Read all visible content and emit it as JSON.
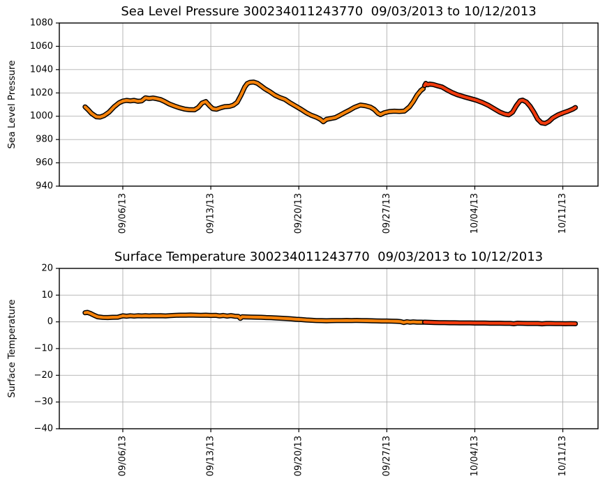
{
  "page": {
    "background": "#ffffff"
  },
  "colors": {
    "early_series": "#F5820A",
    "late_series": "#F23B0D",
    "marker_edge": "#000000",
    "grid": "#b0b0b0",
    "axis": "#000000",
    "text": "#000000"
  },
  "chart_data": [
    {
      "type": "line",
      "title": "Sea Level Pressure 300234011243770  09/03/2013 to 10/12/2013",
      "ylabel": "Sea Level Pressure",
      "xlabel": "",
      "ylim": [
        940,
        1080
      ],
      "ytick_values": [
        1080,
        1060,
        1040,
        1020,
        1000,
        980,
        960,
        940
      ],
      "ytick_labels": [
        "1080",
        "1060",
        "1040",
        "1020",
        "1000",
        "980",
        "960",
        "940"
      ],
      "grid": true,
      "x_axis": {
        "start_label": "09/03/2013",
        "end_label": "10/12/2013",
        "xlim_days": [
          -2.05,
          40.8
        ],
        "ticks": [
          {
            "day": 3,
            "label": "09/06/13"
          },
          {
            "day": 10,
            "label": "09/13/13"
          },
          {
            "day": 17,
            "label": "09/20/13"
          },
          {
            "day": 24,
            "label": "09/27/13"
          },
          {
            "day": 31,
            "label": "10/04/13"
          },
          {
            "day": 38,
            "label": "10/11/13"
          }
        ]
      },
      "series": [
        {
          "name": "pressure-early-deployment",
          "color": "#F5820A",
          "edge_color": "#000000",
          "points": [
            [
              0,
              1008
            ],
            [
              0.25,
              1005.5
            ],
            [
              0.5,
              1002.5
            ],
            [
              0.9,
              999.5
            ],
            [
              1.2,
              999.3
            ],
            [
              1.5,
              1000.5
            ],
            [
              1.9,
              1003.5
            ],
            [
              2.3,
              1008
            ],
            [
              2.7,
              1011.5
            ],
            [
              3.0,
              1013
            ],
            [
              3.3,
              1013.6
            ],
            [
              3.6,
              1013.2
            ],
            [
              3.9,
              1013.6
            ],
            [
              4.2,
              1012.8
            ],
            [
              4.5,
              1013.2
            ],
            [
              4.8,
              1015.8
            ],
            [
              5.1,
              1015.2
            ],
            [
              5.4,
              1015.6
            ],
            [
              5.7,
              1015.0
            ],
            [
              6.0,
              1014.3
            ],
            [
              6.3,
              1012.8
            ],
            [
              6.7,
              1010.5
            ],
            [
              7.1,
              1008.8
            ],
            [
              7.5,
              1007.3
            ],
            [
              7.9,
              1006.2
            ],
            [
              8.3,
              1005.6
            ],
            [
              8.7,
              1005.5
            ],
            [
              9.0,
              1007.5
            ],
            [
              9.3,
              1011.3
            ],
            [
              9.6,
              1012.6
            ],
            [
              9.9,
              1009
            ],
            [
              10.15,
              1006.5
            ],
            [
              10.45,
              1006
            ],
            [
              10.8,
              1007.3
            ],
            [
              11.1,
              1008.2
            ],
            [
              11.5,
              1008.5
            ],
            [
              11.8,
              1009.5
            ],
            [
              12.1,
              1012
            ],
            [
              12.4,
              1018
            ],
            [
              12.7,
              1025
            ],
            [
              12.9,
              1028
            ],
            [
              13.1,
              1029
            ],
            [
              13.4,
              1029.3
            ],
            [
              13.7,
              1028.3
            ],
            [
              14.0,
              1026
            ],
            [
              14.3,
              1023.5
            ],
            [
              14.7,
              1021
            ],
            [
              15.1,
              1018
            ],
            [
              15.5,
              1016
            ],
            [
              15.9,
              1014.4
            ],
            [
              16.3,
              1011.5
            ],
            [
              16.8,
              1008.4
            ],
            [
              17.2,
              1005.8
            ],
            [
              17.6,
              1003
            ],
            [
              18.0,
              1000.8
            ],
            [
              18.4,
              999.2
            ],
            [
              18.7,
              997.5
            ],
            [
              18.95,
              995.3
            ],
            [
              19.2,
              997.3
            ],
            [
              19.5,
              998
            ],
            [
              19.9,
              998.8
            ],
            [
              20.2,
              1000.5
            ],
            [
              20.6,
              1002.8
            ],
            [
              21.0,
              1005
            ],
            [
              21.4,
              1007.5
            ],
            [
              21.9,
              1009.6
            ],
            [
              22.3,
              1009
            ],
            [
              22.7,
              1007.8
            ],
            [
              23.0,
              1005.8
            ],
            [
              23.3,
              1002.5
            ],
            [
              23.5,
              1001.4
            ],
            [
              23.8,
              1003
            ],
            [
              24.2,
              1004
            ],
            [
              24.6,
              1004.3
            ],
            [
              25.0,
              1004.1
            ],
            [
              25.4,
              1004.4
            ],
            [
              25.8,
              1008
            ],
            [
              26.1,
              1012.5
            ],
            [
              26.4,
              1018
            ],
            [
              26.7,
              1022
            ],
            [
              26.9,
              1023.7
            ]
          ]
        },
        {
          "name": "pressure-late-deployment",
          "color": "#F23B0D",
          "edge_color": "#000000",
          "points": [
            [
              27.0,
              1026.2
            ],
            [
              27.1,
              1028.2
            ],
            [
              27.25,
              1027.0
            ],
            [
              27.4,
              1027.6
            ],
            [
              27.7,
              1027.2
            ],
            [
              28.0,
              1026.2
            ],
            [
              28.4,
              1025.0
            ],
            [
              28.8,
              1022.5
            ],
            [
              29.2,
              1020.3
            ],
            [
              29.6,
              1018.5
            ],
            [
              30.1,
              1016.8
            ],
            [
              30.6,
              1015.3
            ],
            [
              31.1,
              1013.8
            ],
            [
              31.6,
              1011.8
            ],
            [
              32.1,
              1009.2
            ],
            [
              32.6,
              1006.0
            ],
            [
              33.0,
              1003.5
            ],
            [
              33.4,
              1001.8
            ],
            [
              33.7,
              1001.2
            ],
            [
              34.0,
              1003.5
            ],
            [
              34.3,
              1009
            ],
            [
              34.6,
              1013.3
            ],
            [
              34.8,
              1013.8
            ],
            [
              35.1,
              1012.2
            ],
            [
              35.4,
              1008.5
            ],
            [
              35.7,
              1003.5
            ],
            [
              36.0,
              997.5
            ],
            [
              36.3,
              994.3
            ],
            [
              36.6,
              993.8
            ],
            [
              36.9,
              995.5
            ],
            [
              37.2,
              998.5
            ],
            [
              37.6,
              1001
            ],
            [
              38.0,
              1002.8
            ],
            [
              38.4,
              1004.3
            ],
            [
              38.8,
              1006.2
            ],
            [
              39.0,
              1007.5
            ]
          ]
        }
      ]
    },
    {
      "type": "line",
      "title": "Surface Temperature 300234011243770  09/03/2013 to 10/12/2013",
      "ylabel": "Surface Temperature",
      "xlabel": "",
      "ylim": [
        -40,
        20
      ],
      "ytick_values": [
        20,
        10,
        0,
        -10,
        -20,
        -30,
        -40
      ],
      "ytick_labels": [
        "20",
        "10",
        "0",
        "−10",
        "−20",
        "−30",
        "−40"
      ],
      "grid": true,
      "x_axis": {
        "start_label": "09/03/2013",
        "end_label": "10/12/2013",
        "xlim_days": [
          -2.05,
          40.8
        ],
        "ticks": [
          {
            "day": 3,
            "label": "09/06/13"
          },
          {
            "day": 10,
            "label": "09/13/13"
          },
          {
            "day": 17,
            "label": "09/20/13"
          },
          {
            "day": 24,
            "label": "09/27/13"
          },
          {
            "day": 31,
            "label": "10/04/13"
          },
          {
            "day": 38,
            "label": "10/11/13"
          }
        ]
      },
      "series": [
        {
          "name": "temperature-early-deployment",
          "color": "#F5820A",
          "edge_color": "#000000",
          "points": [
            [
              0,
              3.4
            ],
            [
              0.2,
              3.55
            ],
            [
              0.45,
              3.1
            ],
            [
              0.7,
              2.5
            ],
            [
              1.0,
              1.9
            ],
            [
              1.4,
              1.65
            ],
            [
              1.8,
              1.6
            ],
            [
              2.2,
              1.7
            ],
            [
              2.6,
              1.75
            ],
            [
              3.0,
              2.25
            ],
            [
              3.3,
              2.1
            ],
            [
              3.6,
              2.3
            ],
            [
              3.9,
              2.15
            ],
            [
              4.2,
              2.3
            ],
            [
              4.5,
              2.2
            ],
            [
              4.8,
              2.3
            ],
            [
              5.1,
              2.2
            ],
            [
              5.4,
              2.3
            ],
            [
              5.7,
              2.25
            ],
            [
              6.0,
              2.3
            ],
            [
              6.4,
              2.2
            ],
            [
              6.8,
              2.35
            ],
            [
              7.2,
              2.45
            ],
            [
              7.6,
              2.5
            ],
            [
              8.0,
              2.5
            ],
            [
              8.4,
              2.55
            ],
            [
              8.8,
              2.5
            ],
            [
              9.2,
              2.45
            ],
            [
              9.6,
              2.5
            ],
            [
              10.0,
              2.4
            ],
            [
              10.4,
              2.45
            ],
            [
              10.7,
              2.2
            ],
            [
              11.0,
              2.4
            ],
            [
              11.3,
              2.15
            ],
            [
              11.6,
              2.35
            ],
            [
              11.9,
              2.1
            ],
            [
              12.2,
              2.05
            ],
            [
              12.35,
              1.3
            ],
            [
              12.5,
              1.9
            ],
            [
              12.8,
              1.85
            ],
            [
              13.2,
              1.8
            ],
            [
              13.6,
              1.75
            ],
            [
              14.0,
              1.7
            ],
            [
              14.4,
              1.6
            ],
            [
              14.8,
              1.55
            ],
            [
              15.2,
              1.45
            ],
            [
              15.6,
              1.35
            ],
            [
              16.0,
              1.25
            ],
            [
              16.4,
              1.1
            ],
            [
              16.8,
              0.95
            ],
            [
              17.2,
              0.85
            ],
            [
              17.6,
              0.7
            ],
            [
              18.0,
              0.6
            ],
            [
              18.4,
              0.5
            ],
            [
              18.8,
              0.45
            ],
            [
              19.2,
              0.4
            ],
            [
              19.6,
              0.45
            ],
            [
              20.0,
              0.5
            ],
            [
              20.4,
              0.5
            ],
            [
              20.8,
              0.55
            ],
            [
              21.2,
              0.5
            ],
            [
              21.6,
              0.55
            ],
            [
              22.0,
              0.5
            ],
            [
              22.4,
              0.45
            ],
            [
              22.8,
              0.4
            ],
            [
              23.2,
              0.35
            ],
            [
              23.6,
              0.3
            ],
            [
              24.0,
              0.3
            ],
            [
              24.4,
              0.25
            ],
            [
              24.8,
              0.2
            ],
            [
              25.1,
              0.1
            ],
            [
              25.35,
              -0.25
            ],
            [
              25.6,
              0.05
            ],
            [
              25.85,
              -0.15
            ],
            [
              26.1,
              0.0
            ],
            [
              26.4,
              -0.1
            ],
            [
              26.7,
              -0.1
            ],
            [
              26.9,
              -0.15
            ]
          ]
        },
        {
          "name": "temperature-late-deployment",
          "color": "#F23B0D",
          "edge_color": "#000000",
          "points": [
            [
              27.0,
              -0.1
            ],
            [
              27.4,
              -0.2
            ],
            [
              27.8,
              -0.25
            ],
            [
              28.2,
              -0.3
            ],
            [
              28.6,
              -0.3
            ],
            [
              29.0,
              -0.35
            ],
            [
              29.4,
              -0.35
            ],
            [
              29.8,
              -0.4
            ],
            [
              30.2,
              -0.4
            ],
            [
              30.6,
              -0.4
            ],
            [
              31.0,
              -0.45
            ],
            [
              31.4,
              -0.45
            ],
            [
              31.8,
              -0.45
            ],
            [
              32.2,
              -0.5
            ],
            [
              32.6,
              -0.5
            ],
            [
              33.0,
              -0.5
            ],
            [
              33.4,
              -0.55
            ],
            [
              33.8,
              -0.55
            ],
            [
              34.1,
              -0.7
            ],
            [
              34.4,
              -0.5
            ],
            [
              34.8,
              -0.55
            ],
            [
              35.2,
              -0.6
            ],
            [
              35.6,
              -0.6
            ],
            [
              36.0,
              -0.6
            ],
            [
              36.35,
              -0.75
            ],
            [
              36.7,
              -0.6
            ],
            [
              37.0,
              -0.6
            ],
            [
              37.4,
              -0.65
            ],
            [
              37.8,
              -0.65
            ],
            [
              38.2,
              -0.7
            ],
            [
              38.6,
              -0.65
            ],
            [
              39.0,
              -0.7
            ]
          ]
        }
      ]
    }
  ]
}
